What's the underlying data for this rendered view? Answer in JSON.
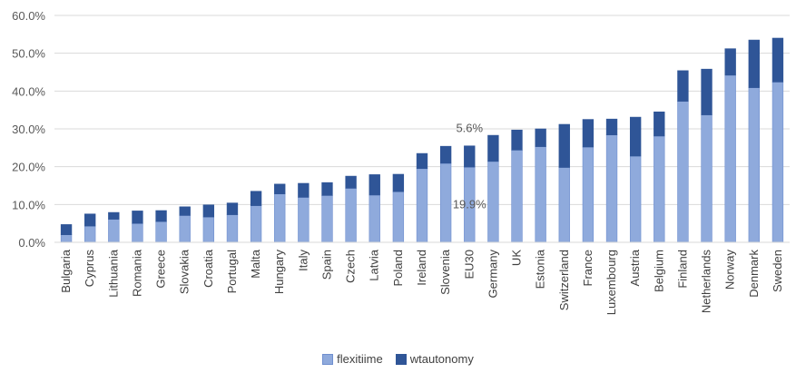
{
  "chart_data": {
    "type": "bar",
    "stacked": true,
    "categories": [
      "Bulgaria",
      "Cyprus",
      "Lithuania",
      "Romania",
      "Greece",
      "Slovakia",
      "Croatia",
      "Portugal",
      "Malta",
      "Hungary",
      "Italy",
      "Spain",
      "Czech",
      "Latvia",
      "Poland",
      "Ireland",
      "Slovenia",
      "EU30",
      "Germany",
      "UK",
      "Estonia",
      "Switzerland",
      "France",
      "Luxembourg",
      "Austria",
      "Belgium",
      "Finland",
      "Netherlands",
      "Norway",
      "Denmark",
      "Sweden"
    ],
    "series": [
      {
        "name": "flexitiime",
        "color": "#8faadc",
        "values": [
          2.0,
          4.3,
          6.1,
          5.0,
          5.5,
          7.1,
          6.7,
          7.3,
          9.7,
          12.8,
          11.9,
          12.4,
          14.3,
          12.5,
          13.4,
          19.5,
          20.9,
          19.9,
          21.4,
          24.4,
          25.3,
          19.8,
          25.2,
          28.4,
          22.8,
          28.1,
          37.3,
          33.7,
          44.2,
          40.9,
          42.4
        ]
      },
      {
        "name": "wtautonomy",
        "color": "#2f5597",
        "values": [
          2.7,
          3.2,
          1.8,
          3.3,
          2.9,
          2.3,
          3.2,
          3.1,
          3.8,
          2.6,
          3.7,
          3.4,
          3.2,
          5.4,
          4.6,
          4.0,
          4.5,
          5.6,
          6.9,
          5.3,
          4.7,
          11.4,
          7.3,
          4.2,
          10.3,
          6.4,
          8.1,
          12.1,
          7.0,
          12.6,
          11.6
        ]
      }
    ],
    "ylim": [
      0,
      60
    ],
    "yticks": [
      "0.0%",
      "10.0%",
      "20.0%",
      "30.0%",
      "40.0%",
      "50.0%",
      "60.0%"
    ],
    "gridlines": true,
    "legend_position": "bottom",
    "annotations": [
      {
        "text": "5.6%",
        "category": "EU30",
        "y": 29.2
      },
      {
        "text": "19.9%",
        "category": "EU30",
        "y": 9.0
      }
    ]
  }
}
